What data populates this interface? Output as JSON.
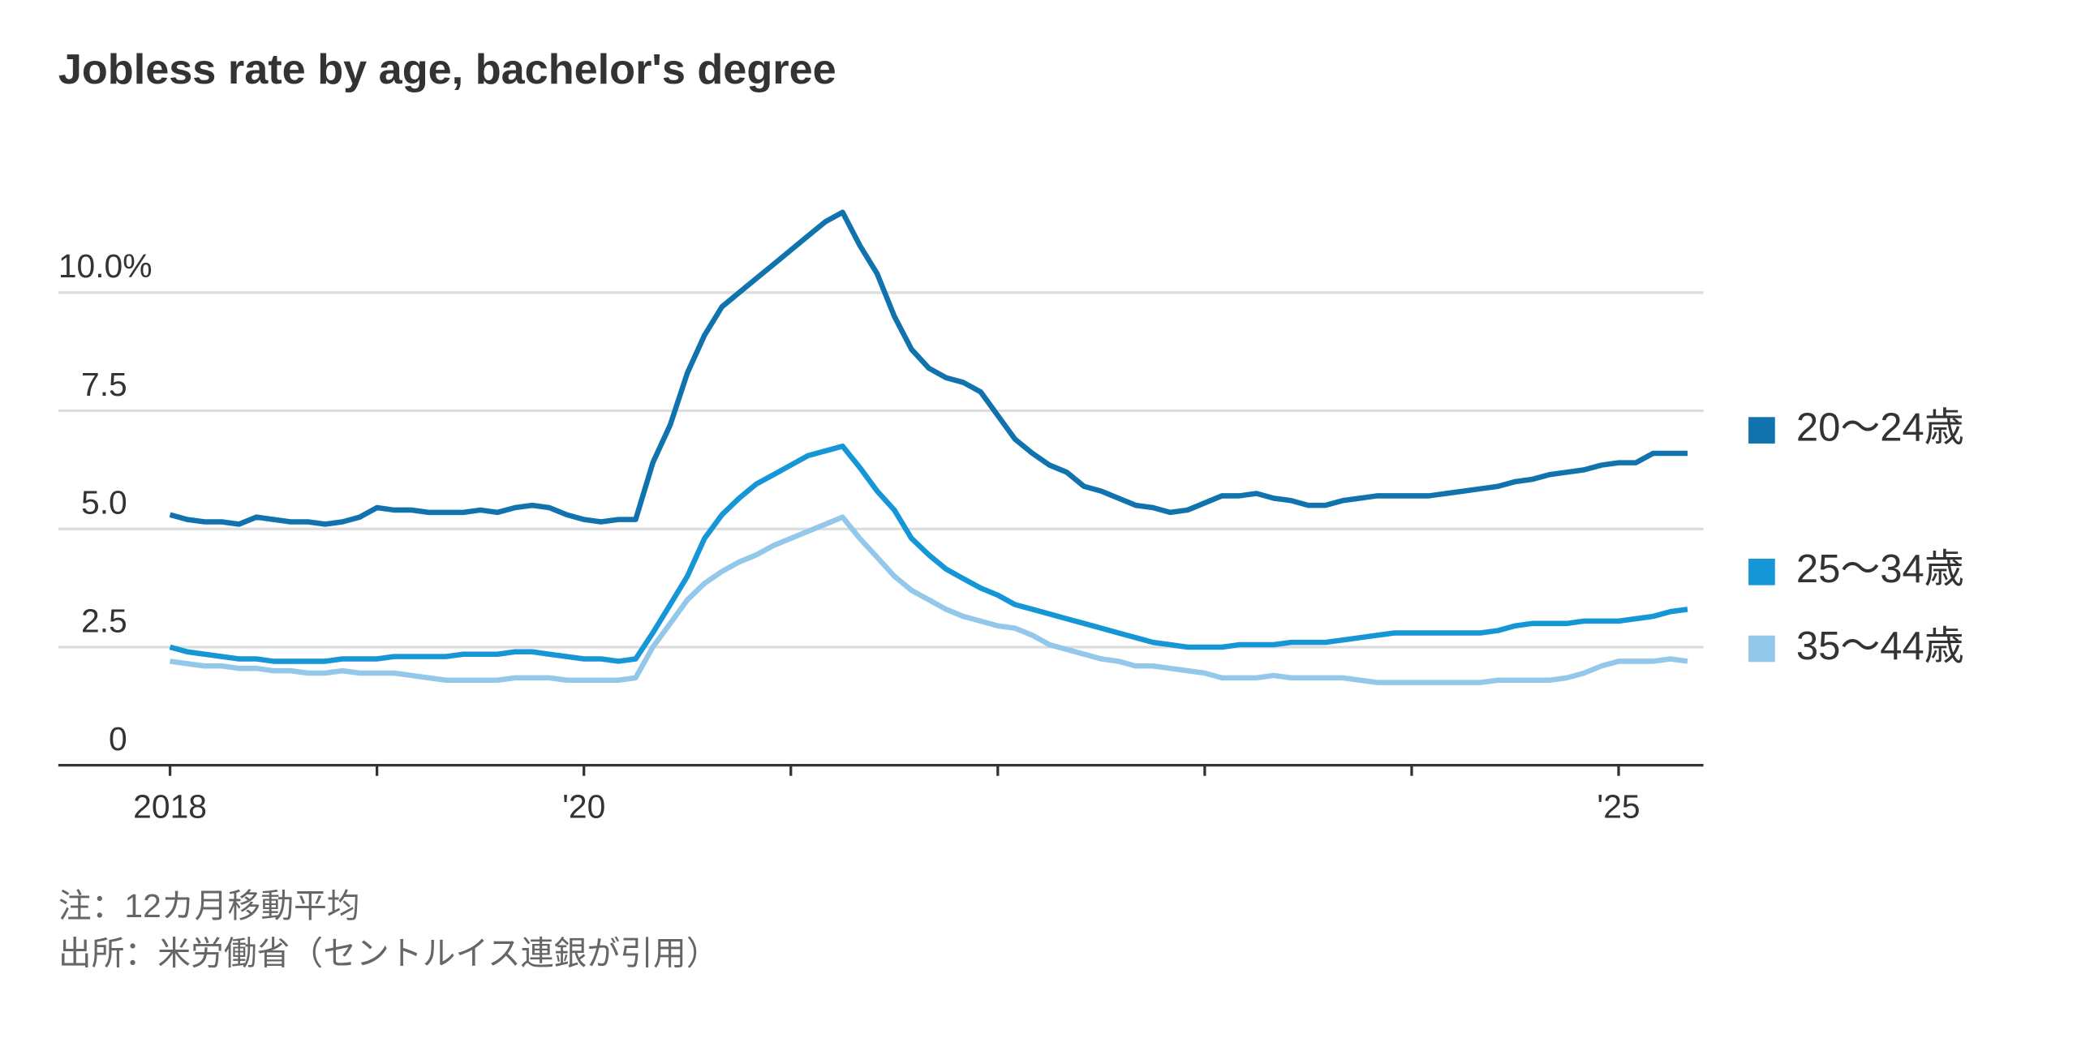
{
  "chart_data": {
    "type": "line",
    "title": "Jobless rate by age, bachelor's degree",
    "notes": [
      "注：12カ月移動平均",
      "出所：米労働省（セントルイス連銀が引用）"
    ],
    "x": [
      2018,
      2018.083,
      2018.167,
      2018.25,
      2018.333,
      2018.417,
      2018.5,
      2018.583,
      2018.667,
      2018.75,
      2018.833,
      2018.917,
      2019,
      2019.083,
      2019.167,
      2019.25,
      2019.333,
      2019.417,
      2019.5,
      2019.583,
      2019.667,
      2019.75,
      2019.833,
      2019.917,
      2020,
      2020.083,
      2020.167,
      2020.25,
      2020.333,
      2020.417,
      2020.5,
      2020.583,
      2020.667,
      2020.75,
      2020.833,
      2020.917,
      2021,
      2021.083,
      2021.167,
      2021.25,
      2021.333,
      2021.417,
      2021.5,
      2021.583,
      2021.667,
      2021.75,
      2021.833,
      2021.917,
      2022,
      2022.083,
      2022.167,
      2022.25,
      2022.333,
      2022.417,
      2022.5,
      2022.583,
      2022.667,
      2022.75,
      2022.833,
      2022.917,
      2023,
      2023.083,
      2023.167,
      2023.25,
      2023.333,
      2023.417,
      2023.5,
      2023.583,
      2023.667,
      2023.75,
      2023.833,
      2023.917,
      2024,
      2024.083,
      2024.167,
      2024.25,
      2024.333,
      2024.417,
      2024.5,
      2024.583,
      2024.667,
      2024.75,
      2024.833,
      2024.917,
      2025,
      2025.083,
      2025.167,
      2025.25,
      2025.333
    ],
    "series": [
      {
        "name": "20～24歳",
        "color": "#1173ad",
        "values": [
          5.3,
          5.2,
          5.15,
          5.15,
          5.1,
          5.25,
          5.2,
          5.15,
          5.15,
          5.1,
          5.15,
          5.25,
          5.45,
          5.4,
          5.4,
          5.35,
          5.35,
          5.35,
          5.4,
          5.35,
          5.45,
          5.5,
          5.45,
          5.3,
          5.2,
          5.15,
          5.2,
          5.2,
          6.4,
          7.2,
          8.3,
          9.1,
          9.7,
          10.0,
          10.3,
          10.6,
          10.9,
          11.2,
          11.5,
          11.7,
          11.0,
          10.4,
          9.5,
          8.8,
          8.4,
          8.2,
          8.1,
          7.9,
          7.4,
          6.9,
          6.6,
          6.35,
          6.2,
          5.9,
          5.8,
          5.65,
          5.5,
          5.45,
          5.35,
          5.4,
          5.55,
          5.7,
          5.7,
          5.75,
          5.65,
          5.6,
          5.5,
          5.5,
          5.6,
          5.65,
          5.7,
          5.7,
          5.7,
          5.7,
          5.75,
          5.8,
          5.85,
          5.9,
          6.0,
          6.05,
          6.15,
          6.2,
          6.25,
          6.35,
          6.4,
          6.4,
          6.6,
          6.6,
          6.6
        ]
      },
      {
        "name": "25～34歳",
        "color": "#1596d6",
        "values": [
          2.5,
          2.4,
          2.35,
          2.3,
          2.25,
          2.25,
          2.2,
          2.2,
          2.2,
          2.2,
          2.25,
          2.25,
          2.25,
          2.3,
          2.3,
          2.3,
          2.3,
          2.35,
          2.35,
          2.35,
          2.4,
          2.4,
          2.35,
          2.3,
          2.25,
          2.25,
          2.2,
          2.25,
          2.8,
          3.4,
          4.0,
          4.8,
          5.3,
          5.65,
          5.95,
          6.15,
          6.35,
          6.55,
          6.65,
          6.75,
          6.3,
          5.8,
          5.4,
          4.8,
          4.45,
          4.15,
          3.95,
          3.75,
          3.6,
          3.4,
          3.3,
          3.2,
          3.1,
          3.0,
          2.9,
          2.8,
          2.7,
          2.6,
          2.55,
          2.5,
          2.5,
          2.5,
          2.55,
          2.55,
          2.55,
          2.6,
          2.6,
          2.6,
          2.65,
          2.7,
          2.75,
          2.8,
          2.8,
          2.8,
          2.8,
          2.8,
          2.8,
          2.85,
          2.95,
          3.0,
          3.0,
          3.0,
          3.05,
          3.05,
          3.05,
          3.1,
          3.15,
          3.25,
          3.3
        ]
      },
      {
        "name": "35～44歳",
        "color": "#94c8ea",
        "values": [
          2.2,
          2.15,
          2.1,
          2.1,
          2.05,
          2.05,
          2.0,
          2.0,
          1.95,
          1.95,
          2.0,
          1.95,
          1.95,
          1.95,
          1.9,
          1.85,
          1.8,
          1.8,
          1.8,
          1.8,
          1.85,
          1.85,
          1.85,
          1.8,
          1.8,
          1.8,
          1.8,
          1.85,
          2.5,
          3.0,
          3.5,
          3.85,
          4.1,
          4.3,
          4.45,
          4.65,
          4.8,
          4.95,
          5.1,
          5.25,
          4.8,
          4.4,
          4.0,
          3.7,
          3.5,
          3.3,
          3.15,
          3.05,
          2.95,
          2.9,
          2.75,
          2.55,
          2.45,
          2.35,
          2.25,
          2.2,
          2.1,
          2.1,
          2.05,
          2.0,
          1.95,
          1.85,
          1.85,
          1.85,
          1.9,
          1.85,
          1.85,
          1.85,
          1.85,
          1.8,
          1.75,
          1.75,
          1.75,
          1.75,
          1.75,
          1.75,
          1.75,
          1.8,
          1.8,
          1.8,
          1.8,
          1.85,
          1.95,
          2.1,
          2.2,
          2.2,
          2.2,
          2.25,
          2.2
        ]
      }
    ],
    "xlim": [
      2017.46,
      2025.41
    ],
    "xticks": [
      2018,
      {
        "value": 2020,
        "label": "'20"
      },
      {
        "value": 2025,
        "label": "'25"
      }
    ],
    "xminorticks": [
      2019,
      2021,
      2022,
      2023,
      2024
    ],
    "ylim": [
      0,
      12
    ],
    "yticks": [
      0,
      2.5,
      {
        "value": 5,
        "label": "5.0"
      },
      7.5,
      {
        "value": 10,
        "label": "10.0%"
      }
    ],
    "grid": true,
    "legend": "right"
  }
}
